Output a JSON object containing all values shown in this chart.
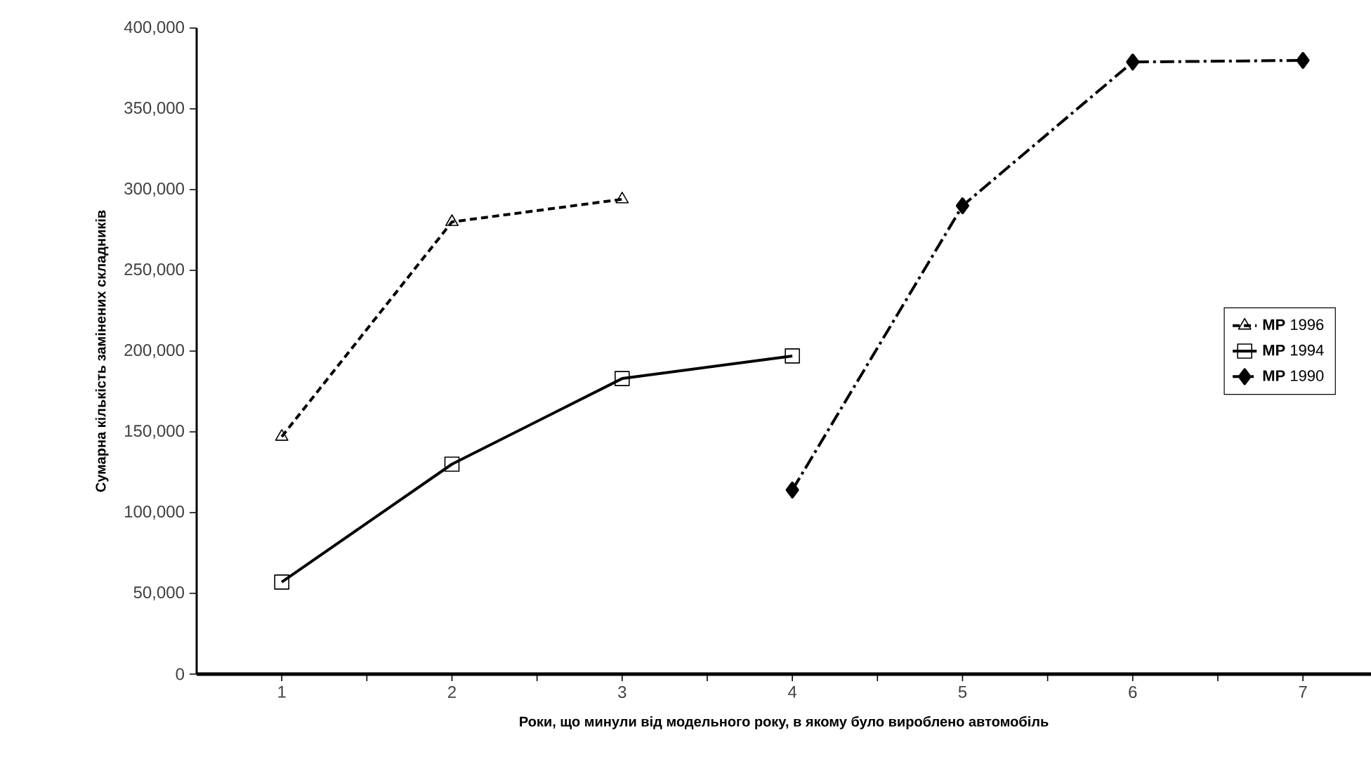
{
  "chart_data": {
    "type": "line",
    "xlabel": "Роки, що минули від модельного року, в якому було вироблено  автомобіль",
    "ylabel": "Сумарна кількість замінених складників",
    "x": [
      1,
      2,
      3,
      4,
      5,
      6,
      7
    ],
    "xlim": [
      0.5,
      7.4
    ],
    "xticks": [
      1,
      {
        "value": 1.5,
        "label": null
      },
      2,
      {
        "value": 2.5,
        "label": null
      },
      3,
      {
        "value": 3.5,
        "label": null
      },
      4,
      {
        "value": 4.5,
        "label": null
      },
      5,
      {
        "value": 5.5,
        "label": null
      },
      6,
      {
        "value": 6.5,
        "label": null
      },
      7
    ],
    "ylim": [
      0,
      400000
    ],
    "yticks": [
      {
        "value": 0,
        "label": "0"
      },
      {
        "value": 50000,
        "label": "50,000"
      },
      {
        "value": 100000,
        "label": "100,000"
      },
      {
        "value": 150000,
        "label": "150,000"
      },
      {
        "value": 200000,
        "label": "200,000"
      },
      {
        "value": 250000,
        "label": "250,000"
      },
      {
        "value": 300000,
        "label": "300,000"
      },
      {
        "value": 350000,
        "label": "350,000"
      },
      {
        "value": 400000,
        "label": "400,000"
      }
    ],
    "grid": false,
    "legend": "right",
    "series": [
      {
        "name": "**MP** 1996",
        "color": "#000000",
        "marker": "triangle",
        "line_style": "dashed",
        "values": [
          147000,
          280000,
          294000,
          null,
          null,
          null,
          null
        ]
      },
      {
        "name": "**MP** 1994",
        "color": "#000000",
        "marker": "square",
        "line_style": "solid",
        "values": [
          57000,
          130000,
          183000,
          197000,
          null,
          null,
          null
        ]
      },
      {
        "name": "**MP** 1990",
        "color": "#000000",
        "marker": "diamond",
        "line_style": "dashdot",
        "values": [
          null,
          null,
          null,
          114000,
          290000,
          379000,
          380000
        ]
      }
    ]
  }
}
